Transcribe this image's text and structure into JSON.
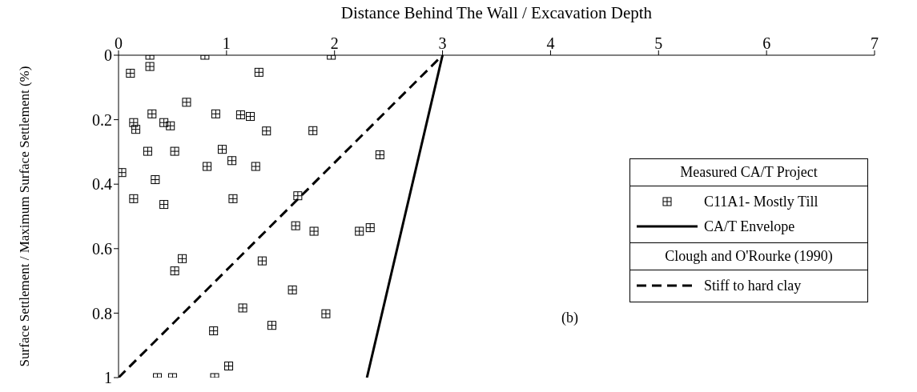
{
  "chart_data": {
    "type": "scatter",
    "xlabel": "Distance Behind The Wall / Excavation Depth",
    "ylabel": "Surface Settlement / Maximum Surface Settlement (%)",
    "xlim": [
      0,
      7
    ],
    "xticks": [
      0,
      1,
      2,
      3,
      4,
      5,
      6,
      7
    ],
    "ylim": [
      1,
      0
    ],
    "yticks": [
      0,
      0.2,
      0.4,
      0.6,
      0.8,
      1
    ],
    "grid": false,
    "legend": "right",
    "annotations": [
      "Measured CA/T Project",
      "Clough and O'Rourke (1990)",
      "(b)"
    ],
    "series": [
      {
        "name": "C11A1- Mostly Till",
        "color": "#000000",
        "marker": "square",
        "x": [
          0.29,
          0.8,
          1.97,
          0.29,
          0.11,
          1.3,
          0.63,
          0.31,
          0.9,
          1.13,
          1.22,
          0.14,
          0.16,
          0.42,
          0.48,
          1.37,
          1.8,
          0.27,
          0.52,
          0.96,
          1.05,
          0.82,
          1.27,
          0.03,
          0.34,
          2.42,
          0.14,
          0.42,
          1.06,
          1.66,
          1.64,
          1.81,
          2.23,
          2.33,
          0.59,
          0.52,
          1.33,
          1.61,
          1.15,
          1.92,
          1.42,
          0.88,
          1.02,
          0.36,
          0.5,
          0.89
        ],
        "values": [
          0,
          0,
          0,
          0.035,
          0.056,
          0.053,
          0.146,
          0.182,
          0.182,
          0.185,
          0.19,
          0.209,
          0.23,
          0.209,
          0.219,
          0.235,
          0.234,
          0.298,
          0.298,
          0.292,
          0.327,
          0.345,
          0.345,
          0.364,
          0.386,
          0.309,
          0.445,
          0.463,
          0.445,
          0.436,
          0.529,
          0.546,
          0.546,
          0.535,
          0.631,
          0.669,
          0.638,
          0.728,
          0.784,
          0.802,
          0.838,
          0.855,
          0.964,
          1,
          1,
          1
        ]
      },
      {
        "name": "CA/T Envelope",
        "type": "line",
        "color": "#000000",
        "line_style": "solid",
        "marker": "none",
        "x": [
          3,
          2.3
        ],
        "values": [
          0,
          1
        ]
      },
      {
        "name": "Stiff to hard clay",
        "type": "line",
        "color": "#000000",
        "line_style": "dashed",
        "marker": "none",
        "x": [
          0,
          3
        ],
        "values": [
          1,
          0
        ]
      }
    ]
  }
}
